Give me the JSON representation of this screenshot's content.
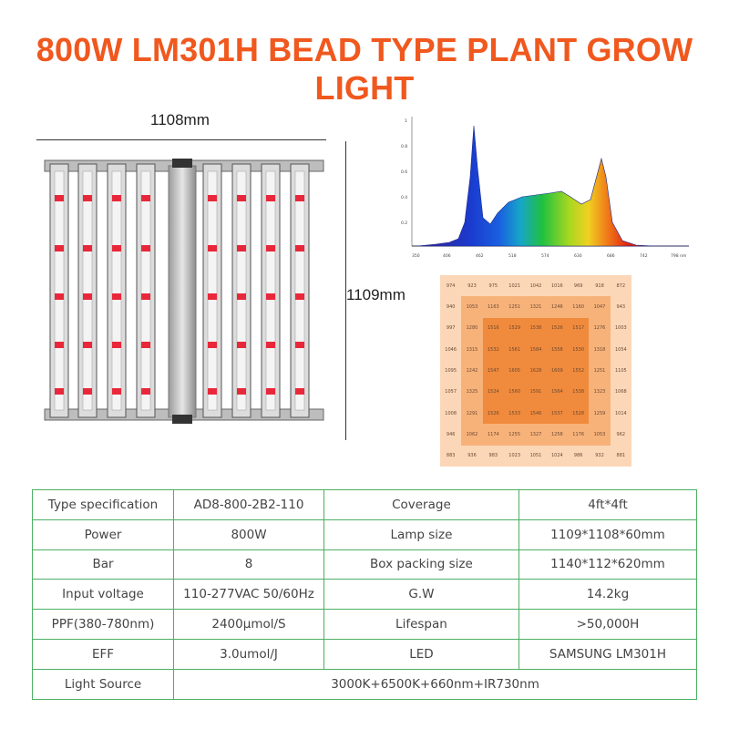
{
  "title": "800W LM301H BEAD TYPE PLANT GROW LIGHT",
  "dimensions": {
    "width_label": "1108mm",
    "height_label": "1109mm"
  },
  "spectrum": {
    "y_ticks": [
      "1",
      "0.8",
      "0.6",
      "0.4",
      "0.2"
    ],
    "x_ticks": [
      "350",
      "406",
      "462",
      "518",
      "574",
      "630",
      "686",
      "742",
      "798 nm"
    ]
  },
  "ppfd_grid": [
    [
      "974",
      "923",
      "975",
      "1021",
      "1042",
      "1016",
      "969",
      "918",
      "872"
    ],
    [
      "940",
      "1053",
      "1163",
      "1251",
      "1321",
      "1246",
      "1160",
      "1047",
      "943"
    ],
    [
      "997",
      "1280",
      "1516",
      "1529",
      "1538",
      "1526",
      "1517",
      "1276",
      "1003"
    ],
    [
      "1046",
      "1315",
      "1532",
      "1561",
      "1584",
      "1558",
      "1530",
      "1318",
      "1054"
    ],
    [
      "1095",
      "1242",
      "1547",
      "1605",
      "1628",
      "1609",
      "1552",
      "1251",
      "1105"
    ],
    [
      "1057",
      "1325",
      "1524",
      "1560",
      "1591",
      "1564",
      "1538",
      "1323",
      "1068"
    ],
    [
      "1008",
      "1291",
      "1526",
      "1533",
      "1546",
      "1537",
      "1528",
      "1259",
      "1014"
    ],
    [
      "946",
      "1062",
      "1174",
      "1255",
      "1327",
      "1258",
      "1176",
      "1053",
      "962"
    ],
    [
      "883",
      "936",
      "983",
      "1023",
      "1051",
      "1024",
      "986",
      "932",
      "881"
    ]
  ],
  "specs": [
    [
      "Type specification",
      "AD8-800-2B2-110",
      "Coverage",
      "4ft*4ft"
    ],
    [
      "Power",
      "800W",
      "Lamp size",
      "1109*1108*60mm"
    ],
    [
      "Bar",
      "8",
      "Box packing size",
      "1140*112*620mm"
    ],
    [
      "Input voltage",
      "110-277VAC 50/60Hz",
      "G.W",
      "14.2kg"
    ],
    [
      "PPF(380-780nm)",
      "2400μmol/S",
      "Lifespan",
      ">50,000H"
    ],
    [
      "EFF",
      "3.0umol/J",
      "LED",
      "SAMSUNG LM301H"
    ]
  ],
  "light_source": {
    "label": "Light Source",
    "value": "3000K+6500K+660nm+IR730nm"
  },
  "colors": {
    "title": "#f0581e",
    "table_border": "#4caf63",
    "led_red": "#e8283a"
  }
}
